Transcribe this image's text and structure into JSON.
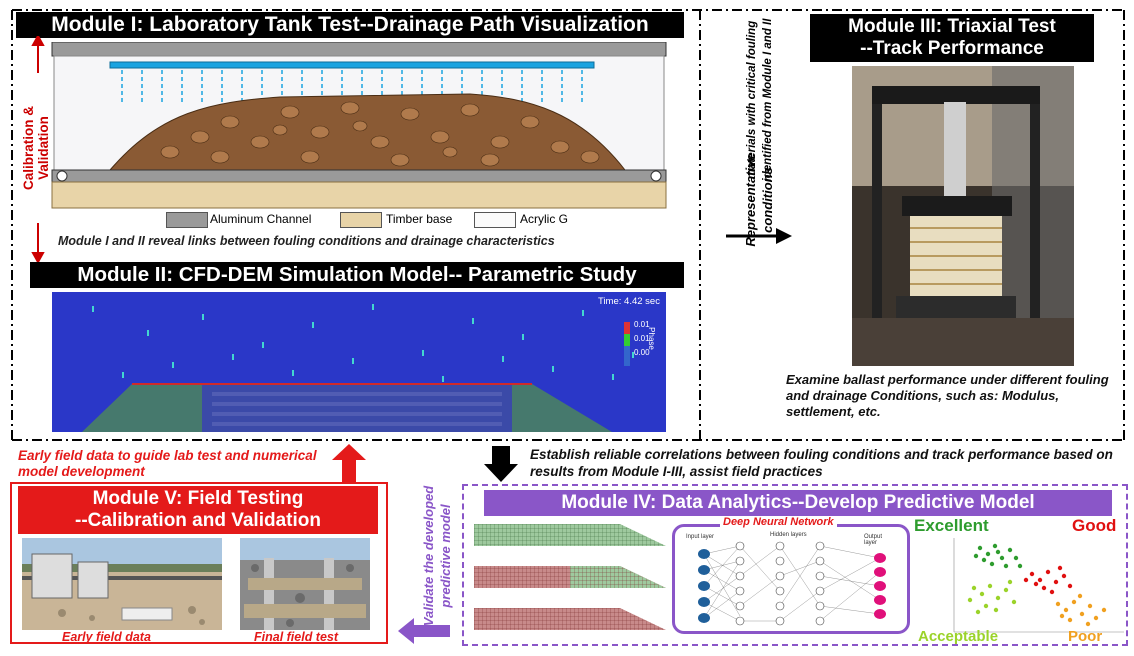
{
  "module1": {
    "title": "Module I: Laboratory Tank Test--Drainage Path Visualization",
    "legend": [
      "Aluminum Channel",
      "Timber base",
      "Acrylic G"
    ],
    "caption": "Module I and II reveal links between fouling conditions and drainage characteristics"
  },
  "side_label": "Calibration & Validation",
  "module2": {
    "title": "Module II: CFD-DEM Simulation Model-- Parametric Study",
    "time_label": "Time:",
    "time_value": "4.42 sec",
    "scale_ticks": [
      "0.01",
      "0.01",
      "0.00"
    ],
    "scale_name": "Phase"
  },
  "arrow_text": {
    "line1": "Representative",
    "line2": "conditions",
    "line3": "materials with critical fouling",
    "line4": "identified from Module I and II"
  },
  "module3": {
    "title_line1": "Module III: Triaxial Test",
    "title_line2": "--Track Performance",
    "caption": "Examine ballast performance under different fouling and drainage Conditions, such as: Modulus, settlement, etc."
  },
  "early_field_text": "Early field data to guide lab test and numerical model development",
  "correlation_text": "Establish reliable correlations between fouling conditions and track performance based on results from Module I-III, assist field practices",
  "module4": {
    "title": "Module IV: Data Analytics--Develop Predictive Model",
    "dnn_title": "Deep Neural Network",
    "dnn_layers": [
      "Input layer",
      "Hidden layers",
      "Output layer"
    ],
    "classes": [
      "Excellent",
      "Good",
      "Acceptable",
      "Poor"
    ],
    "class_colors": [
      "#2e9c2e",
      "#e01010",
      "#9bd32a",
      "#f0a020"
    ]
  },
  "validate_text": {
    "line1": "Validate the developed",
    "line2": "predictive model"
  },
  "module5": {
    "title_line1": "Module V: Field Testing",
    "title_line2": "--Calibration and Validation",
    "photo1_caption": "Early field data",
    "photo2_caption": "Final field test"
  },
  "colors": {
    "red": "#e41a1a",
    "purple": "#8a56c8",
    "black": "#000000"
  }
}
